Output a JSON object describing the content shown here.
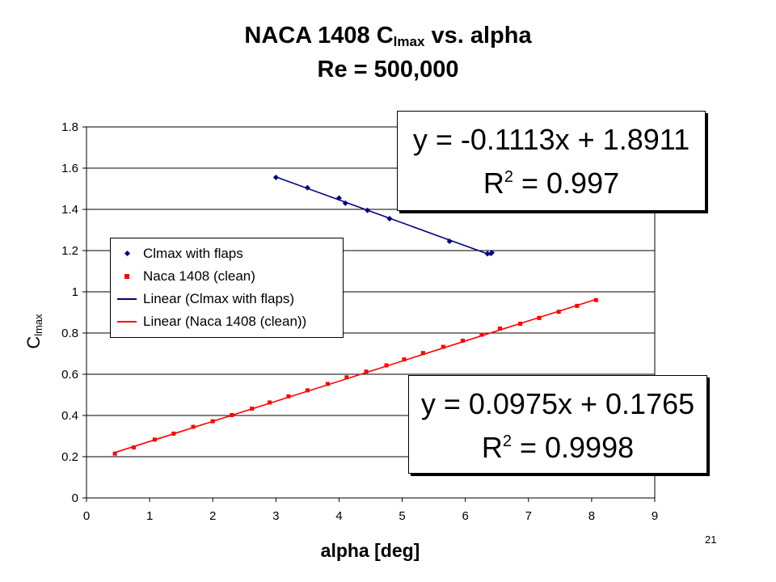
{
  "title": {
    "line1_prefix": "NACA 1408 C",
    "line1_sub": "lmax",
    "line1_suffix": " vs. alpha",
    "line2": "Re = 500,000"
  },
  "axes": {
    "ylabel_main": "C",
    "ylabel_sub": "lmax",
    "xlabel": "alpha [deg]"
  },
  "page_number": "21",
  "legend": {
    "items": [
      {
        "label": "Clmax with flaps",
        "kind": "marker-diamond",
        "color": "#000080"
      },
      {
        "label": "Naca 1408 (clean)",
        "kind": "marker-square",
        "color": "#ff0000"
      },
      {
        "label": "Linear (Clmax with flaps)",
        "kind": "line",
        "color": "#000080"
      },
      {
        "label": "Linear (Naca 1408 (clean))",
        "kind": "line",
        "color": "#ff0000"
      }
    ]
  },
  "equations": {
    "flaps": {
      "eq": "y = -0.1113x + 1.8911",
      "r2_prefix": "R",
      "r2_sup": "2",
      "r2_suffix": " = 0.997"
    },
    "clean": {
      "eq": "y = 0.0975x + 0.1765",
      "r2_prefix": "R",
      "r2_sup": "2",
      "r2_suffix": " = 0.9998"
    }
  },
  "chart_data": {
    "type": "scatter",
    "xlim": [
      0,
      9
    ],
    "ylim": [
      0,
      1.8
    ],
    "xticks": [
      "0",
      "1",
      "2",
      "3",
      "4",
      "5",
      "6",
      "7",
      "8",
      "9"
    ],
    "yticks": [
      "0",
      "0.2",
      "0.4",
      "0.6",
      "0.8",
      "1",
      "1.2",
      "1.4",
      "1.6",
      "1.8"
    ],
    "grid": "horizontal",
    "legend_position": "left-middle",
    "series": [
      {
        "name": "Clmax with flaps",
        "marker": "diamond",
        "color": "#000080",
        "x": [
          3.0,
          3.5,
          4.0,
          4.1,
          4.45,
          4.8,
          5.75,
          6.35,
          6.42
        ],
        "y": [
          1.555,
          1.505,
          1.455,
          1.43,
          1.395,
          1.355,
          1.245,
          1.185,
          1.19
        ]
      },
      {
        "name": "Naca 1408 (clean)",
        "marker": "square",
        "color": "#ff0000",
        "x": [
          0.45,
          0.75,
          1.08,
          1.38,
          1.69,
          2.0,
          2.3,
          2.62,
          2.9,
          3.2,
          3.5,
          3.82,
          4.12,
          4.43,
          4.75,
          5.03,
          5.33,
          5.65,
          5.96,
          6.26,
          6.55,
          6.87,
          7.17,
          7.48,
          7.77,
          8.07
        ],
        "y": [
          0.215,
          0.245,
          0.283,
          0.312,
          0.345,
          0.372,
          0.402,
          0.433,
          0.463,
          0.493,
          0.522,
          0.553,
          0.585,
          0.613,
          0.643,
          0.672,
          0.703,
          0.733,
          0.763,
          0.792,
          0.822,
          0.845,
          0.873,
          0.903,
          0.932,
          0.96
        ]
      }
    ],
    "trendlines": [
      {
        "name": "Linear (Clmax with flaps)",
        "color": "#000080",
        "slope": -0.1113,
        "intercept": 1.8911,
        "x_range": [
          3.0,
          6.42
        ]
      },
      {
        "name": "Linear (Naca 1408 (clean))",
        "color": "#ff0000",
        "slope": 0.0975,
        "intercept": 0.1765,
        "x_range": [
          0.45,
          8.07
        ]
      }
    ]
  }
}
